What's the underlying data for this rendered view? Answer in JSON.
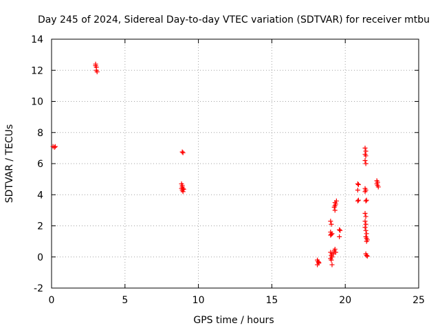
{
  "chart_data": {
    "type": "scatter",
    "title": "Day 245 of 2024, Sidereal Day-to-day VTEC variation (SDTVAR) for receiver mtbu",
    "xlabel": "GPS time / hours",
    "ylabel": "SDTVAR / TECUs",
    "xlim": [
      0,
      25
    ],
    "ylim": [
      -2,
      14
    ],
    "xticks": [
      0,
      5,
      10,
      15,
      20,
      25
    ],
    "yticks": [
      -2,
      0,
      2,
      4,
      6,
      8,
      10,
      12,
      14
    ],
    "grid": true,
    "marker": "plus",
    "colors": {
      "points": "#ff0000",
      "grid": "#a0a0a0",
      "axes": "#000000"
    },
    "series": [
      {
        "name": "SDTVAR",
        "points": [
          [
            0.1,
            7.1
          ],
          [
            0.2,
            7.05
          ],
          [
            0.25,
            7.1
          ],
          [
            3.0,
            12.4
          ],
          [
            3.05,
            12.2
          ],
          [
            3.05,
            12.0
          ],
          [
            3.1,
            11.9
          ],
          [
            3.0,
            12.3
          ],
          [
            8.9,
            6.75
          ],
          [
            8.95,
            6.7
          ],
          [
            8.85,
            4.7
          ],
          [
            8.9,
            4.6
          ],
          [
            8.9,
            4.5
          ],
          [
            8.95,
            4.4
          ],
          [
            8.9,
            4.3
          ],
          [
            8.95,
            4.2
          ],
          [
            9.0,
            4.35
          ],
          [
            8.85,
            4.4
          ],
          [
            18.1,
            -0.2
          ],
          [
            18.15,
            -0.3
          ],
          [
            18.2,
            -0.4
          ],
          [
            18.1,
            -0.5
          ],
          [
            18.2,
            -0.35
          ],
          [
            19.0,
            2.3
          ],
          [
            19.05,
            2.1
          ],
          [
            19.0,
            1.6
          ],
          [
            19.1,
            1.5
          ],
          [
            19.0,
            1.4
          ],
          [
            19.05,
            1.45
          ],
          [
            19.0,
            0.3
          ],
          [
            19.1,
            0.2
          ],
          [
            19.05,
            0.1
          ],
          [
            19.1,
            0.0
          ],
          [
            19.0,
            -0.1
          ],
          [
            19.05,
            -0.2
          ],
          [
            19.1,
            -0.5
          ],
          [
            19.25,
            0.4
          ],
          [
            19.3,
            0.5
          ],
          [
            19.35,
            0.3
          ],
          [
            19.2,
            0.2
          ],
          [
            19.3,
            3.5
          ],
          [
            19.35,
            3.4
          ],
          [
            19.3,
            3.3
          ],
          [
            19.25,
            3.2
          ],
          [
            19.3,
            3.0
          ],
          [
            19.4,
            3.6
          ],
          [
            19.6,
            1.75
          ],
          [
            19.65,
            1.7
          ],
          [
            19.6,
            1.3
          ],
          [
            20.85,
            4.7
          ],
          [
            20.9,
            4.65
          ],
          [
            20.85,
            4.3
          ],
          [
            20.85,
            3.6
          ],
          [
            20.9,
            3.65
          ],
          [
            21.35,
            7.0
          ],
          [
            21.4,
            6.8
          ],
          [
            21.35,
            6.6
          ],
          [
            21.4,
            6.5
          ],
          [
            21.35,
            6.2
          ],
          [
            21.4,
            6.0
          ],
          [
            21.35,
            4.4
          ],
          [
            21.4,
            4.3
          ],
          [
            21.35,
            4.2
          ],
          [
            21.4,
            3.6
          ],
          [
            21.45,
            3.65
          ],
          [
            21.35,
            2.8
          ],
          [
            21.4,
            2.6
          ],
          [
            21.35,
            2.3
          ],
          [
            21.4,
            2.1
          ],
          [
            21.35,
            1.9
          ],
          [
            21.4,
            1.7
          ],
          [
            21.45,
            1.5
          ],
          [
            21.4,
            1.3
          ],
          [
            21.45,
            1.2
          ],
          [
            21.5,
            1.1
          ],
          [
            21.45,
            1.0
          ],
          [
            21.4,
            0.2
          ],
          [
            21.45,
            0.1
          ],
          [
            21.5,
            0.05
          ],
          [
            22.15,
            4.9
          ],
          [
            22.2,
            4.8
          ],
          [
            22.15,
            4.7
          ],
          [
            22.2,
            4.6
          ],
          [
            22.25,
            4.5
          ]
        ]
      }
    ]
  }
}
